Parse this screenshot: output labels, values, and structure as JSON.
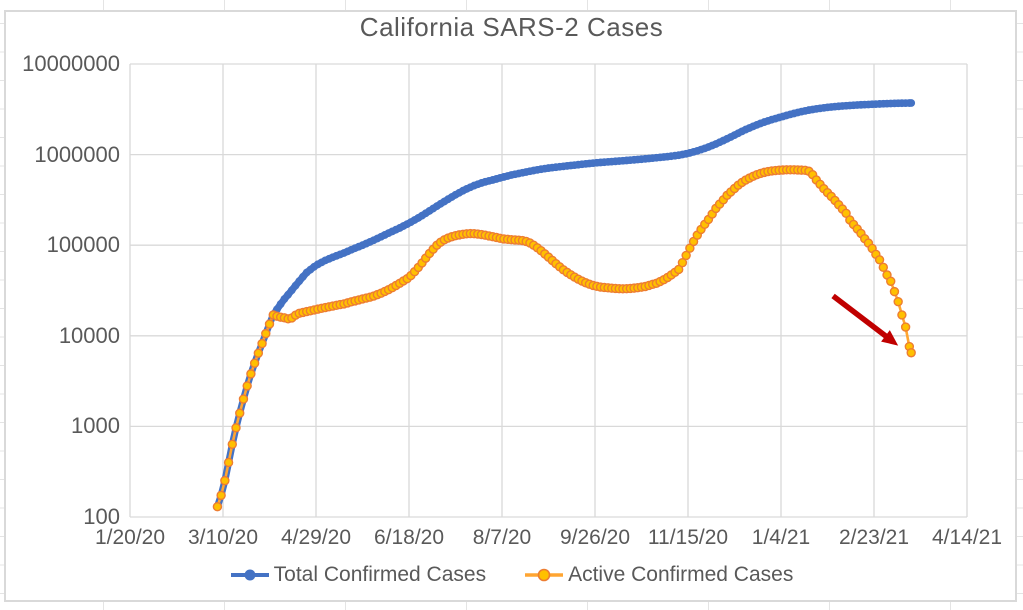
{
  "chart_data": {
    "type": "line",
    "title": "California SARS-2 Cases",
    "grid": true,
    "legend_position": "bottom",
    "y_axis": {
      "scale": "log",
      "min": 100,
      "max": 10000000,
      "tick_labels": [
        "100",
        "1000",
        "10000",
        "100000",
        "1000000",
        "10000000"
      ],
      "tick_values": [
        100,
        1000,
        10000,
        100000,
        1000000,
        10000000
      ]
    },
    "x_axis": {
      "epoch_label": "1/20/20",
      "tick_labels": [
        "1/20/20",
        "3/10/20",
        "4/29/20",
        "6/18/20",
        "8/7/20",
        "9/26/20",
        "11/15/20",
        "1/4/21",
        "2/23/21",
        "4/14/21"
      ],
      "tick_day_offsets": [
        0,
        50,
        100,
        150,
        200,
        250,
        300,
        350,
        400,
        450
      ],
      "max_day": 450
    },
    "series": [
      {
        "name": "Total Confirmed Cases",
        "line_color": "#4472C4",
        "marker_fill": "#4472C4",
        "marker_stroke": "#4472C4",
        "points": [
          [
            47,
            130
          ],
          [
            50,
            200
          ],
          [
            53,
            400
          ],
          [
            56,
            800
          ],
          [
            59,
            1400
          ],
          [
            62,
            2400
          ],
          [
            65,
            3800
          ],
          [
            68,
            5700
          ],
          [
            71,
            8200
          ],
          [
            74,
            12000
          ],
          [
            77,
            17000
          ],
          [
            80,
            21000
          ],
          [
            83,
            25500
          ],
          [
            86,
            30000
          ],
          [
            90,
            38000
          ],
          [
            95,
            50000
          ],
          [
            100,
            60000
          ],
          [
            105,
            68000
          ],
          [
            110,
            75000
          ],
          [
            115,
            82000
          ],
          [
            120,
            91000
          ],
          [
            125,
            100000
          ],
          [
            130,
            111000
          ],
          [
            135,
            124000
          ],
          [
            140,
            139000
          ],
          [
            145,
            155000
          ],
          [
            150,
            175000
          ],
          [
            155,
            200000
          ],
          [
            160,
            232000
          ],
          [
            165,
            270000
          ],
          [
            170,
            313000
          ],
          [
            175,
            360000
          ],
          [
            180,
            410000
          ],
          [
            185,
            455000
          ],
          [
            190,
            495000
          ],
          [
            195,
            525000
          ],
          [
            200,
            560000
          ],
          [
            205,
            595000
          ],
          [
            210,
            625000
          ],
          [
            215,
            655000
          ],
          [
            220,
            685000
          ],
          [
            225,
            710000
          ],
          [
            230,
            730000
          ],
          [
            235,
            750000
          ],
          [
            240,
            770000
          ],
          [
            245,
            790000
          ],
          [
            250,
            810000
          ],
          [
            255,
            825000
          ],
          [
            260,
            840000
          ],
          [
            265,
            855000
          ],
          [
            270,
            872000
          ],
          [
            275,
            890000
          ],
          [
            280,
            910000
          ],
          [
            285,
            932000
          ],
          [
            290,
            955000
          ],
          [
            295,
            985000
          ],
          [
            300,
            1030000
          ],
          [
            305,
            1100000
          ],
          [
            310,
            1190000
          ],
          [
            315,
            1310000
          ],
          [
            320,
            1460000
          ],
          [
            325,
            1640000
          ],
          [
            330,
            1850000
          ],
          [
            335,
            2050000
          ],
          [
            340,
            2250000
          ],
          [
            345,
            2430000
          ],
          [
            350,
            2600000
          ],
          [
            355,
            2780000
          ],
          [
            360,
            2950000
          ],
          [
            365,
            3100000
          ],
          [
            370,
            3220000
          ],
          [
            375,
            3320000
          ],
          [
            380,
            3400000
          ],
          [
            385,
            3460000
          ],
          [
            390,
            3520000
          ],
          [
            395,
            3560000
          ],
          [
            400,
            3600000
          ],
          [
            405,
            3640000
          ],
          [
            410,
            3670000
          ],
          [
            415,
            3695000
          ],
          [
            420,
            3710000
          ]
        ]
      },
      {
        "name": "Active Confirmed Cases",
        "line_color": "#FFA532",
        "marker_fill": "#FFC000",
        "marker_stroke": "#ED7D31",
        "points": [
          [
            47,
            130
          ],
          [
            50,
            200
          ],
          [
            53,
            400
          ],
          [
            56,
            800
          ],
          [
            59,
            1400
          ],
          [
            62,
            2400
          ],
          [
            65,
            3800
          ],
          [
            68,
            5700
          ],
          [
            71,
            8200
          ],
          [
            74,
            12000
          ],
          [
            77,
            17000
          ],
          [
            80,
            16200
          ],
          [
            83,
            15800
          ],
          [
            86,
            15200
          ],
          [
            90,
            17500
          ],
          [
            95,
            18500
          ],
          [
            100,
            19500
          ],
          [
            105,
            20500
          ],
          [
            110,
            21500
          ],
          [
            115,
            22500
          ],
          [
            120,
            24000
          ],
          [
            125,
            25500
          ],
          [
            130,
            27000
          ],
          [
            135,
            29500
          ],
          [
            140,
            33000
          ],
          [
            145,
            38000
          ],
          [
            150,
            44000
          ],
          [
            153,
            51000
          ],
          [
            156,
            60000
          ],
          [
            159,
            72000
          ],
          [
            162,
            86000
          ],
          [
            165,
            100000
          ],
          [
            168,
            112000
          ],
          [
            171,
            120000
          ],
          [
            174,
            126000
          ],
          [
            177,
            130000
          ],
          [
            180,
            133000
          ],
          [
            183,
            134500
          ],
          [
            186,
            133500
          ],
          [
            189,
            131000
          ],
          [
            192,
            128000
          ],
          [
            195,
            124000
          ],
          [
            198,
            120500
          ],
          [
            200,
            118000
          ],
          [
            203,
            116000
          ],
          [
            206,
            114500
          ],
          [
            209,
            113500
          ],
          [
            212,
            112000
          ],
          [
            215,
            106000
          ],
          [
            218,
            97000
          ],
          [
            221,
            87000
          ],
          [
            224,
            77000
          ],
          [
            227,
            68000
          ],
          [
            230,
            60000
          ],
          [
            233,
            53500
          ],
          [
            236,
            48500
          ],
          [
            239,
            44500
          ],
          [
            242,
            41000
          ],
          [
            245,
            38500
          ],
          [
            248,
            36500
          ],
          [
            250,
            35500
          ],
          [
            253,
            34500
          ],
          [
            256,
            34000
          ],
          [
            259,
            33500
          ],
          [
            262,
            33200
          ],
          [
            265,
            33000
          ],
          [
            268,
            33200
          ],
          [
            271,
            33600
          ],
          [
            274,
            34200
          ],
          [
            277,
            35000
          ],
          [
            280,
            36500
          ],
          [
            283,
            38000
          ],
          [
            286,
            40500
          ],
          [
            289,
            44000
          ],
          [
            292,
            48500
          ],
          [
            295,
            54000
          ],
          [
            298,
            70000
          ],
          [
            300,
            85000
          ],
          [
            303,
            110000
          ],
          [
            306,
            140000
          ],
          [
            309,
            170000
          ],
          [
            312,
            205000
          ],
          [
            315,
            255000
          ],
          [
            318,
            300000
          ],
          [
            321,
            355000
          ],
          [
            324,
            405000
          ],
          [
            327,
            460000
          ],
          [
            330,
            510000
          ],
          [
            333,
            550000
          ],
          [
            336,
            590000
          ],
          [
            339,
            620000
          ],
          [
            342,
            645000
          ],
          [
            345,
            660000
          ],
          [
            348,
            670000
          ],
          [
            351,
            676000
          ],
          [
            354,
            680000
          ],
          [
            357,
            680000
          ],
          [
            360,
            676000
          ],
          [
            363,
            670000
          ],
          [
            365,
            655000
          ],
          [
            367,
            600000
          ],
          [
            369,
            525000
          ],
          [
            371,
            470000
          ],
          [
            373,
            420000
          ],
          [
            375,
            380000
          ],
          [
            378,
            330000
          ],
          [
            380,
            295000
          ],
          [
            382,
            265000
          ],
          [
            385,
            225000
          ],
          [
            387,
            190000
          ],
          [
            390,
            160000
          ],
          [
            393,
            135000
          ],
          [
            395,
            118000
          ],
          [
            398,
            100000
          ],
          [
            400,
            85000
          ],
          [
            403,
            69000
          ],
          [
            405,
            57000
          ],
          [
            407,
            47000
          ],
          [
            409,
            40000
          ],
          [
            410,
            35000
          ],
          [
            412,
            27000
          ],
          [
            414,
            21000
          ],
          [
            415,
            17000
          ],
          [
            416,
            15000
          ],
          [
            417,
            12500
          ],
          [
            418,
            9500
          ],
          [
            419,
            7600
          ],
          [
            420,
            6500
          ]
        ]
      }
    ],
    "annotation": {
      "shape": "arrow",
      "color": "#C00000",
      "from": [
        378,
        27500
      ],
      "to": [
        413,
        7800
      ],
      "points_at": "last Active Confirmed Cases data point"
    }
  }
}
